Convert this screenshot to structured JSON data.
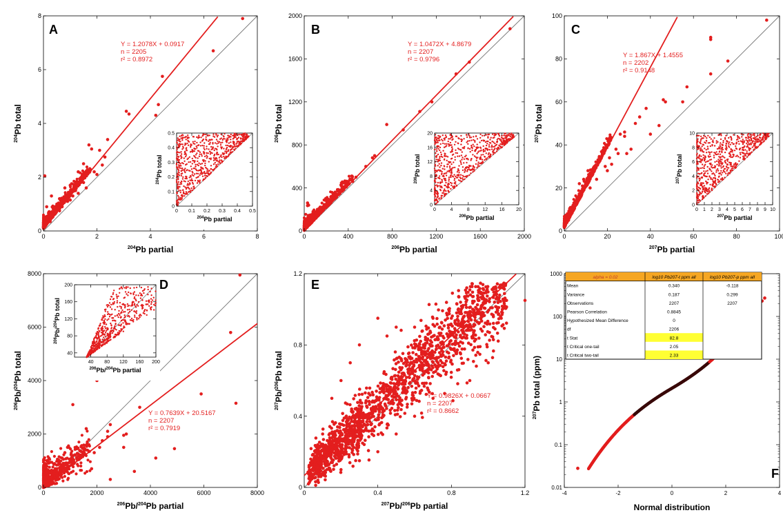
{
  "theme": {
    "marker": "#e31e1e",
    "fit_line": "#e31e1e",
    "one_to_one": "#777777",
    "dark_marker": "#3a0a0a",
    "table_header": "#f5a623",
    "table_highlight": "#ffff33"
  },
  "chart_data": [
    {
      "id": "A",
      "panel_label": "A",
      "type": "scatter",
      "xlabel_parts": [
        "204",
        "Pb partial"
      ],
      "ylabel_parts": [
        "204",
        "Pb total"
      ],
      "xlim": [
        0,
        8
      ],
      "ylim": [
        0,
        8
      ],
      "xticks": [
        0,
        2,
        4,
        6,
        8
      ],
      "yticks": [
        0,
        2,
        4,
        6,
        8
      ],
      "fit": {
        "slope": 1.2078,
        "intercept": 0.0917
      },
      "fit_text": [
        "Y = 1.2078X + 0.0917",
        "n = 2205",
        "r² = 0.8972"
      ],
      "points": [
        [
          7.45,
          7.9
        ],
        [
          6.35,
          6.7
        ],
        [
          4.45,
          5.75
        ],
        [
          4.3,
          4.7
        ],
        [
          4.2,
          4.3
        ],
        [
          3.1,
          4.45
        ],
        [
          3.2,
          4.35
        ],
        [
          2.4,
          3.4
        ],
        [
          2.1,
          3.0
        ],
        [
          1.8,
          3.05
        ],
        [
          1.7,
          3.2
        ],
        [
          2.3,
          2.75
        ],
        [
          2.2,
          2.45
        ],
        [
          1.5,
          2.5
        ],
        [
          1.9,
          2.2
        ],
        [
          2.0,
          2.1
        ],
        [
          1.3,
          2.2
        ],
        [
          1.5,
          1.8
        ],
        [
          1.6,
          1.6
        ],
        [
          1.0,
          1.7
        ],
        [
          0.8,
          1.6
        ],
        [
          1.2,
          1.5
        ],
        [
          0.05,
          2.05
        ],
        [
          0.3,
          1.3
        ],
        [
          0.6,
          1.2
        ],
        [
          0.5,
          1.0
        ],
        [
          0.9,
          1.1
        ],
        [
          1.1,
          1.3
        ],
        [
          0.4,
          0.8
        ],
        [
          0.2,
          0.7
        ],
        [
          0.7,
          0.9
        ],
        [
          0.15,
          0.5
        ],
        [
          0.3,
          0.5
        ],
        [
          0.1,
          0.3
        ],
        [
          0.05,
          0.15
        ],
        [
          0.25,
          0.35
        ],
        [
          0.6,
          0.75
        ],
        [
          0.45,
          0.65
        ],
        [
          1.3,
          1.4
        ],
        [
          1.0,
          1.15
        ],
        [
          0.35,
          0.9
        ],
        [
          0.12,
          0.9
        ]
      ],
      "inset": {
        "xlabel_parts": [
          "204",
          "Pb partial"
        ],
        "ylabel_parts": [
          "204",
          "Pb total"
        ],
        "xlim": [
          0,
          0.5
        ],
        "ylim": [
          0,
          0.5
        ],
        "xticks": [
          "0",
          "0.1",
          "0.2",
          "0.3",
          "0.4",
          "0.5"
        ],
        "yticks": [
          "0",
          "0.1",
          "0.2",
          "0.3",
          "0.4",
          "0.5"
        ]
      }
    },
    {
      "id": "B",
      "panel_label": "B",
      "type": "scatter",
      "xlabel_parts": [
        "206",
        "Pb partial"
      ],
      "ylabel_parts": [
        "206",
        "Pb total"
      ],
      "xlim": [
        0,
        2000
      ],
      "ylim": [
        0,
        2000
      ],
      "xticks": [
        0,
        400,
        800,
        1200,
        1600,
        2000
      ],
      "yticks": [
        0,
        400,
        800,
        1200,
        1600,
        2000
      ],
      "fit": {
        "slope": 1.0472,
        "intercept": 4.8679
      },
      "fit_text": [
        "Y = 1.0472X + 4.8679",
        "n = 2207",
        "r² = 0.9796"
      ],
      "points": [
        [
          1870,
          1880
        ],
        [
          1500,
          1570
        ],
        [
          1380,
          1460
        ],
        [
          1160,
          1200
        ],
        [
          1050,
          1110
        ],
        [
          750,
          990
        ],
        [
          900,
          940
        ],
        [
          640,
          700
        ],
        [
          620,
          680
        ],
        [
          560,
          600
        ],
        [
          470,
          500
        ],
        [
          440,
          460
        ],
        [
          380,
          420
        ],
        [
          300,
          340
        ],
        [
          250,
          280
        ],
        [
          200,
          220
        ],
        [
          150,
          170
        ],
        [
          120,
          140
        ],
        [
          90,
          110
        ],
        [
          60,
          80
        ],
        [
          40,
          60
        ],
        [
          20,
          30
        ],
        [
          30,
          260
        ],
        [
          30,
          235
        ],
        [
          40,
          240
        ],
        [
          80,
          180
        ],
        [
          120,
          200
        ],
        [
          10,
          100
        ],
        [
          20,
          80
        ],
        [
          50,
          100
        ]
      ],
      "inset": {
        "xlabel_parts": [
          "206",
          "Pb partial"
        ],
        "ylabel_parts": [
          "206",
          "Pb total"
        ],
        "xlim": [
          0,
          20
        ],
        "ylim": [
          0,
          20
        ],
        "xticks": [
          "0",
          "4",
          "8",
          "12",
          "16",
          "20"
        ],
        "yticks": [
          "0",
          "4",
          "8",
          "12",
          "16",
          "20"
        ]
      }
    },
    {
      "id": "C",
      "panel_label": "C",
      "type": "scatter",
      "xlabel_parts": [
        "207",
        "Pb partial"
      ],
      "ylabel_parts": [
        "207",
        "Pb total"
      ],
      "xlim": [
        0,
        100
      ],
      "ylim": [
        0,
        100
      ],
      "xticks": [
        0,
        20,
        40,
        60,
        80,
        100
      ],
      "yticks": [
        0,
        20,
        40,
        60,
        80,
        100
      ],
      "fit": {
        "slope": 1.867,
        "intercept": 1.4555
      },
      "fit_text": [
        "Y = 1.867X + 1.4555",
        "n = 2202",
        "r² = 0.9148"
      ],
      "points": [
        [
          94,
          98
        ],
        [
          68,
          90
        ],
        [
          68,
          89
        ],
        [
          76,
          79
        ],
        [
          68,
          73
        ],
        [
          57,
          67
        ],
        [
          46,
          61
        ],
        [
          47,
          60
        ],
        [
          38,
          57
        ],
        [
          35,
          53
        ],
        [
          33,
          50
        ],
        [
          28,
          46
        ],
        [
          26,
          45
        ],
        [
          28,
          44
        ],
        [
          31,
          38
        ],
        [
          29,
          36
        ],
        [
          25,
          36
        ],
        [
          21,
          34
        ],
        [
          16,
          33
        ],
        [
          19,
          30
        ],
        [
          14,
          30
        ],
        [
          11,
          28
        ],
        [
          13,
          26
        ],
        [
          9,
          24
        ],
        [
          10,
          22
        ],
        [
          7,
          22
        ],
        [
          8,
          18
        ],
        [
          12,
          20
        ],
        [
          6,
          15
        ],
        [
          5,
          12
        ],
        [
          4,
          10
        ],
        [
          3,
          8
        ],
        [
          2,
          5
        ],
        [
          15,
          24
        ],
        [
          20,
          28
        ],
        [
          40,
          45
        ],
        [
          44,
          49
        ],
        [
          55,
          60
        ],
        [
          24,
          38
        ],
        [
          22,
          31
        ]
      ],
      "inset": {
        "xlabel_parts": [
          "207",
          "Pb partial"
        ],
        "ylabel_parts": [
          "207",
          "Pb total"
        ],
        "xlim": [
          0,
          10
        ],
        "ylim": [
          0,
          10
        ],
        "xticks": [
          "0",
          "1",
          "2",
          "3",
          "4",
          "5",
          "6",
          "7",
          "8",
          "9",
          "10"
        ],
        "yticks": [
          "0",
          "2",
          "4",
          "6",
          "8",
          "10"
        ]
      }
    },
    {
      "id": "D",
      "panel_label": "D",
      "type": "scatter",
      "xlabel_parts": [
        "206",
        "Pb/",
        "204",
        "Pb partial"
      ],
      "ylabel_parts": [
        "206",
        "Pb/",
        "204",
        "Pb total"
      ],
      "xlim": [
        0,
        8000
      ],
      "ylim": [
        0,
        8000
      ],
      "xticks": [
        0,
        2000,
        4000,
        6000,
        8000
      ],
      "yticks": [
        0,
        2000,
        4000,
        6000,
        8000
      ],
      "fit": {
        "slope": 0.7639,
        "intercept": 20.5167
      },
      "fit_text": [
        "Y = 0.7639X + 20.5167",
        "n = 2207",
        "r² = 0.7919"
      ],
      "points": [
        [
          7350,
          7950
        ],
        [
          7200,
          3150
        ],
        [
          7000,
          5800
        ],
        [
          5900,
          3500
        ],
        [
          4200,
          1100
        ],
        [
          4900,
          1450
        ],
        [
          3600,
          3000
        ],
        [
          3100,
          2000
        ],
        [
          3000,
          1950
        ],
        [
          2500,
          2350
        ],
        [
          2400,
          2100
        ],
        [
          2400,
          1900
        ],
        [
          2200,
          1750
        ],
        [
          2100,
          1500
        ],
        [
          1900,
          1300
        ],
        [
          1700,
          1600
        ],
        [
          1500,
          1450
        ],
        [
          1400,
          1350
        ],
        [
          1300,
          1200
        ],
        [
          1100,
          3100
        ],
        [
          1000,
          1000
        ],
        [
          900,
          1500
        ],
        [
          800,
          1300
        ],
        [
          700,
          1100
        ],
        [
          600,
          900
        ],
        [
          500,
          700
        ],
        [
          400,
          600
        ],
        [
          300,
          400
        ],
        [
          200,
          300
        ],
        [
          100,
          200
        ],
        [
          2500,
          300
        ],
        [
          3000,
          1500
        ],
        [
          3400,
          600
        ],
        [
          1800,
          700
        ],
        [
          1600,
          2200
        ],
        [
          2000,
          4000
        ]
      ],
      "inset": {
        "xlabel_parts": [
          "206",
          "Pb/",
          "204",
          "Pb partial"
        ],
        "ylabel_parts": [
          "206",
          "Pb/",
          "204",
          "Pb total"
        ],
        "xlim": [
          0,
          200
        ],
        "ylim": [
          30,
          200
        ],
        "xticks": [
          "40",
          "80",
          "120",
          "160",
          "200"
        ],
        "yticks": [
          "40",
          "80",
          "120",
          "160",
          "200"
        ]
      }
    },
    {
      "id": "E",
      "panel_label": "E",
      "type": "scatter",
      "xlabel_parts": [
        "207",
        "Pb/",
        "206",
        "Pb partial"
      ],
      "ylabel_parts": [
        "207",
        "Pb/",
        "206",
        "Pb total"
      ],
      "xlim": [
        0,
        1.2
      ],
      "ylim": [
        0,
        1.2
      ],
      "xticks": [
        "0",
        "0.4",
        "0.8",
        "1.2"
      ],
      "yticks": [
        "0",
        "0.4",
        "0.8",
        "1.2"
      ],
      "fit": {
        "slope": 0.9826,
        "intercept": 0.0667
      },
      "fit_text": [
        "Y = 0.9826X + 0.0667",
        "n = 2207",
        "r² = 0.8662"
      ],
      "points": [
        [
          1.2,
          1.05
        ],
        [
          1.1,
          1.05
        ],
        [
          1.05,
          1.0
        ],
        [
          0.95,
          1.05
        ],
        [
          0.9,
          0.95
        ],
        [
          0.8,
          0.95
        ],
        [
          0.7,
          0.95
        ],
        [
          0.6,
          0.9
        ],
        [
          0.5,
          0.9
        ],
        [
          0.45,
          0.85
        ],
        [
          0.4,
          0.95
        ],
        [
          0.3,
          0.8
        ],
        [
          0.25,
          0.7
        ],
        [
          0.2,
          0.6
        ],
        [
          0.15,
          0.5
        ],
        [
          0.1,
          0.3
        ],
        [
          0.05,
          0.1
        ],
        [
          0.5,
          0.3
        ],
        [
          0.7,
          0.5
        ],
        [
          0.9,
          0.6
        ],
        [
          1.0,
          0.7
        ],
        [
          0.6,
          0.4
        ],
        [
          0.4,
          0.2
        ],
        [
          0.3,
          0.15
        ],
        [
          0.2,
          0.1
        ],
        [
          0.85,
          0.75
        ],
        [
          0.75,
          0.7
        ],
        [
          0.65,
          0.75
        ],
        [
          0.55,
          0.6
        ],
        [
          0.35,
          0.4
        ]
      ]
    },
    {
      "id": "F",
      "panel_label": "F",
      "type": "scatter",
      "xlabel": "Normal distribution",
      "ylabel_parts": [
        "207",
        "Pb total  (ppm)"
      ],
      "xlim": [
        -4,
        4
      ],
      "ylim": [
        0.01,
        1000
      ],
      "yscale": "log",
      "xticks": [
        "-4",
        "-2",
        "0",
        "2",
        "4"
      ],
      "yticks": [
        "0.01",
        "0.1",
        "1",
        "10",
        "100",
        "1000"
      ],
      "outliers": [
        [
          -3.5,
          0.028
        ],
        [
          3.45,
          270
        ],
        [
          3.35,
          230
        ]
      ],
      "stats_table": {
        "header": [
          "alpha = 0.02",
          "log10 Pb207-t ppm all",
          "log10 Pb207-p ppm all"
        ],
        "rows": [
          [
            "Mean",
            "0.340",
            "-0.118"
          ],
          [
            "Variance",
            "0.187",
            "0.299"
          ],
          [
            "Observations",
            "2207",
            "2207"
          ],
          [
            "Pearson Correlation",
            "0.8845",
            ""
          ],
          [
            "Hypothesized Mean Difference",
            "0",
            ""
          ],
          [
            "df",
            "2206",
            ""
          ],
          [
            "t Stat",
            "82.8",
            ""
          ],
          [
            "t Critical one-tail",
            "2.05",
            ""
          ],
          [
            "t Critical two-tail",
            "2.33",
            ""
          ]
        ],
        "highlight_rows": [
          6,
          8
        ]
      }
    }
  ]
}
